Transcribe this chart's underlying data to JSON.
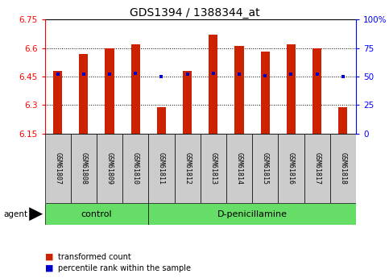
{
  "title": "GDS1394 / 1388344_at",
  "samples": [
    "GSM61807",
    "GSM61808",
    "GSM61809",
    "GSM61810",
    "GSM61811",
    "GSM61812",
    "GSM61813",
    "GSM61814",
    "GSM61815",
    "GSM61816",
    "GSM61817",
    "GSM61818"
  ],
  "transformed_counts": [
    6.48,
    6.57,
    6.6,
    6.62,
    6.29,
    6.48,
    6.67,
    6.61,
    6.58,
    6.62,
    6.6,
    6.29
  ],
  "percentile_ranks": [
    6.463,
    6.463,
    6.463,
    6.465,
    6.448,
    6.463,
    6.465,
    6.463,
    6.452,
    6.463,
    6.463,
    6.448
  ],
  "ymin": 6.15,
  "ymax": 6.75,
  "y_ticks": [
    6.15,
    6.3,
    6.45,
    6.6,
    6.75
  ],
  "y_tick_labels": [
    "6.15",
    "6.3",
    "6.45",
    "6.6",
    "6.75"
  ],
  "y2_ticks": [
    0,
    25,
    50,
    75,
    100
  ],
  "y2_tick_labels": [
    "0",
    "25",
    "50",
    "75",
    "100%"
  ],
  "groups": [
    {
      "label": "control",
      "start": 0,
      "end": 3
    },
    {
      "label": "D-penicillamine",
      "start": 4,
      "end": 11
    }
  ],
  "bar_color": "#CC2200",
  "percentile_color": "#0000CC",
  "green_color": "#66DD66",
  "gray_color": "#CCCCCC",
  "agent_label": "agent",
  "legend_items": [
    {
      "label": "transformed count",
      "color": "#CC2200"
    },
    {
      "label": "percentile rank within the sample",
      "color": "#0000CC"
    }
  ],
  "bar_width": 0.35
}
